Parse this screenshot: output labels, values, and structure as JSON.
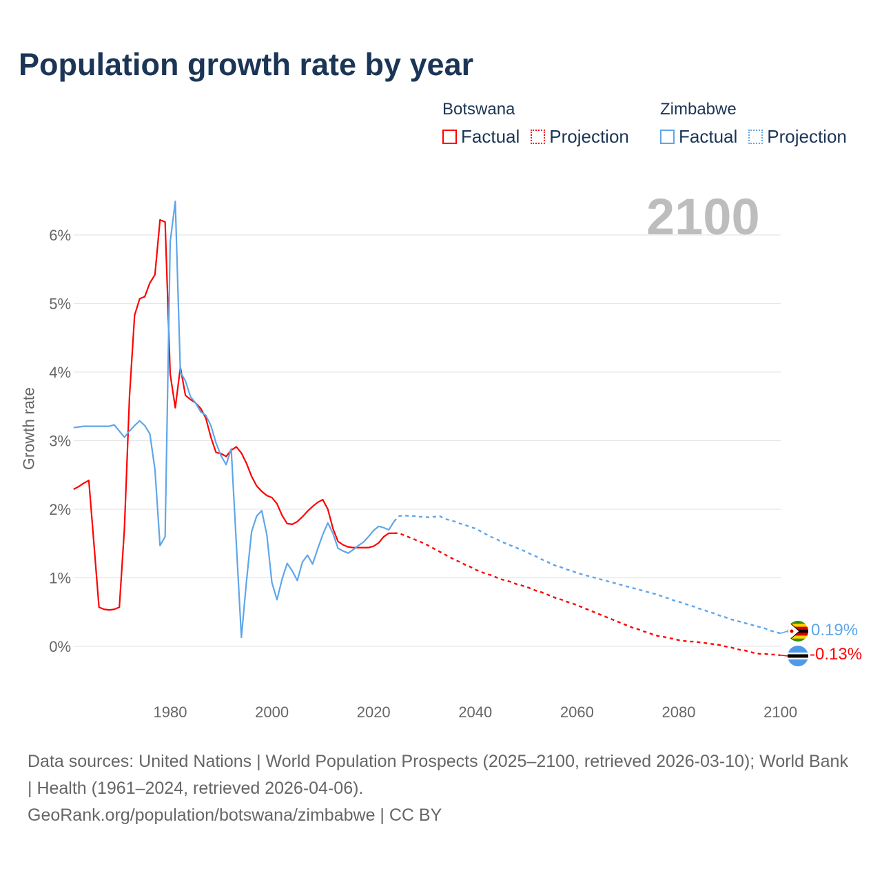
{
  "chart_data": {
    "type": "line",
    "title": "Population growth rate by year",
    "xlabel": "",
    "ylabel": "Growth rate",
    "xlim": [
      1961,
      2100
    ],
    "ylim": [
      -0.7,
      6.7
    ],
    "x_ticks": [
      1980,
      2000,
      2020,
      2040,
      2060,
      2080,
      2100
    ],
    "x_tick_labels": [
      "1980",
      "2000",
      "2020",
      "2040",
      "2060",
      "2080",
      "2100"
    ],
    "y_ticks": [
      0,
      1,
      2,
      3,
      4,
      5,
      6
    ],
    "y_tick_labels": [
      "0%",
      "1%",
      "2%",
      "3%",
      "4%",
      "5%",
      "6%"
    ],
    "grid": true,
    "legend_position": "top-right",
    "current_year": "2100",
    "series": [
      {
        "name": "Botswana",
        "color": "#ff0000",
        "end_label": "-0.13%",
        "factual_start": 1961,
        "factual": [
          2.29,
          2.33,
          2.38,
          2.42,
          1.5,
          0.57,
          0.54,
          0.53,
          0.54,
          0.57,
          1.72,
          3.65,
          4.83,
          5.07,
          5.1,
          5.3,
          5.42,
          6.22,
          6.19,
          3.97,
          3.48,
          4.07,
          3.66,
          3.6,
          3.55,
          3.47,
          3.33,
          3.05,
          2.83,
          2.81,
          2.77,
          2.86,
          2.91,
          2.82,
          2.67,
          2.48,
          2.34,
          2.26,
          2.2,
          2.17,
          2.08,
          1.91,
          1.79,
          1.78,
          1.82,
          1.89,
          1.97,
          2.04,
          2.1,
          2.14,
          2.0,
          1.72,
          1.53,
          1.48,
          1.45,
          1.44,
          1.44,
          1.44,
          1.44,
          1.46,
          1.51,
          1.6,
          1.65,
          1.65
        ],
        "projection_start": 2025,
        "projection": [
          1.65,
          1.62,
          1.59,
          1.56,
          1.53,
          1.5,
          1.46,
          1.42,
          1.38,
          1.34,
          1.3,
          1.26,
          1.23,
          1.19,
          1.16,
          1.12,
          1.09,
          1.06,
          1.04,
          1.01,
          0.98,
          0.96,
          0.94,
          0.91,
          0.89,
          0.87,
          0.84,
          0.81,
          0.79,
          0.76,
          0.73,
          0.7,
          0.68,
          0.65,
          0.63,
          0.6,
          0.57,
          0.54,
          0.51,
          0.48,
          0.45,
          0.42,
          0.39,
          0.36,
          0.33,
          0.3,
          0.27,
          0.25,
          0.22,
          0.2,
          0.17,
          0.15,
          0.14,
          0.12,
          0.11,
          0.09,
          0.08,
          0.07,
          0.07,
          0.06,
          0.05,
          0.04,
          0.03,
          0.02,
          0.0,
          -0.01,
          -0.03,
          -0.05,
          -0.06,
          -0.08,
          -0.1,
          -0.11,
          -0.11,
          -0.12,
          -0.12,
          -0.13
        ]
      },
      {
        "name": "Zimbabwe",
        "color": "#5ea6ea",
        "end_label": "0.19%",
        "factual_start": 1961,
        "factual": [
          3.19,
          3.2,
          3.21,
          3.21,
          3.21,
          3.21,
          3.21,
          3.21,
          3.23,
          3.14,
          3.05,
          3.14,
          3.22,
          3.29,
          3.22,
          3.1,
          2.58,
          1.47,
          1.6,
          5.9,
          6.49,
          4.0,
          3.87,
          3.64,
          3.55,
          3.42,
          3.37,
          3.22,
          2.97,
          2.78,
          2.65,
          2.88,
          1.5,
          0.13,
          0.95,
          1.67,
          1.9,
          1.98,
          1.63,
          0.93,
          0.68,
          0.98,
          1.21,
          1.1,
          0.96,
          1.23,
          1.33,
          1.2,
          1.42,
          1.63,
          1.8,
          1.65,
          1.43,
          1.39,
          1.36,
          1.41,
          1.47,
          1.52,
          1.6,
          1.69,
          1.75,
          1.73,
          1.7,
          1.82
        ],
        "projection_start": 2025,
        "projection": [
          1.9,
          1.91,
          1.9,
          1.9,
          1.89,
          1.89,
          1.88,
          1.89,
          1.9,
          1.86,
          1.84,
          1.82,
          1.79,
          1.77,
          1.74,
          1.72,
          1.68,
          1.64,
          1.6,
          1.57,
          1.53,
          1.5,
          1.47,
          1.44,
          1.41,
          1.38,
          1.34,
          1.31,
          1.27,
          1.24,
          1.2,
          1.17,
          1.15,
          1.12,
          1.1,
          1.07,
          1.05,
          1.03,
          1.01,
          0.99,
          0.97,
          0.95,
          0.93,
          0.91,
          0.89,
          0.87,
          0.85,
          0.83,
          0.81,
          0.79,
          0.77,
          0.75,
          0.72,
          0.7,
          0.67,
          0.65,
          0.63,
          0.6,
          0.58,
          0.55,
          0.53,
          0.5,
          0.48,
          0.45,
          0.43,
          0.4,
          0.38,
          0.36,
          0.34,
          0.32,
          0.3,
          0.28,
          0.26,
          0.23,
          0.21,
          0.19
        ]
      }
    ]
  },
  "legend": {
    "botswana": {
      "name": "Botswana",
      "factual": "Factual",
      "projection": "Projection"
    },
    "zimbabwe": {
      "name": "Zimbabwe",
      "factual": "Factual",
      "projection": "Projection"
    }
  },
  "footer": {
    "sources": "Data sources: United Nations | World Population Prospects (2025–2100, retrieved 2026-03-10); World Bank | Health (1961–2024, retrieved 2026-04-06).",
    "credit": "GeoRank.org/population/botswana/zimbabwe | CC BY"
  }
}
